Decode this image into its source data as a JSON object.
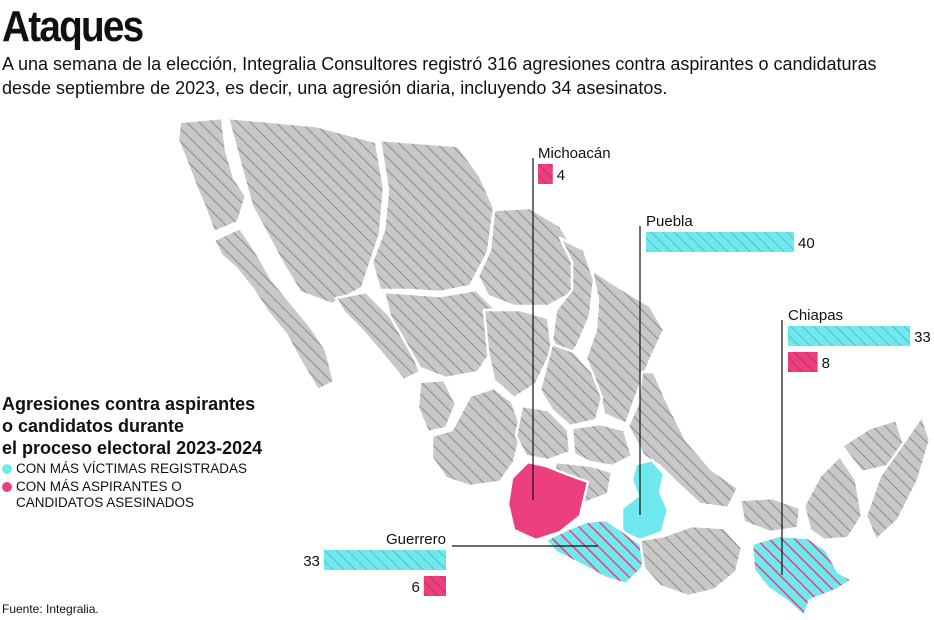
{
  "title": "Ataques",
  "subtitle": "A una semana de la elección, Integralia Consultores registró 316 agresiones contra aspirantes o candidaturas desde septiembre de 2023, es decir, una agresión diaria, incluyendo 34 asesinatos.",
  "legend": {
    "title_lines": [
      "Agresiones contra aspirantes",
      "o candidatos durante",
      "el proceso electoral 2023-2024"
    ],
    "items": [
      {
        "label": "CON MÁS VÍCTIMAS REGISTRADAS",
        "color": "#6fe9ee"
      },
      {
        "label": "CON MÁS ASPIRANTES O CANDIDATOS ASESINADOS",
        "color": "#ec3f7d"
      }
    ]
  },
  "source": "Fuente: Integralia.",
  "colors": {
    "victims": "#6fe9ee",
    "killed": "#ec3f7d",
    "state_fill": "#c8c8c8",
    "hatch": "#8f8f8f"
  },
  "chart_data": {
    "type": "bar",
    "series": [
      {
        "name": "CON MÁS VÍCTIMAS REGISTRADAS",
        "color": "#6fe9ee"
      },
      {
        "name": "CON MÁS ASPIRANTES O CANDIDATOS ASESINADOS",
        "color": "#ec3f7d"
      }
    ],
    "states": [
      {
        "name": "Michoacán",
        "victims": null,
        "killed": 4
      },
      {
        "name": "Puebla",
        "victims": 40,
        "killed": null
      },
      {
        "name": "Chiapas",
        "victims": 33,
        "killed": 8
      },
      {
        "name": "Guerrero",
        "victims": 33,
        "killed": 6
      }
    ]
  }
}
